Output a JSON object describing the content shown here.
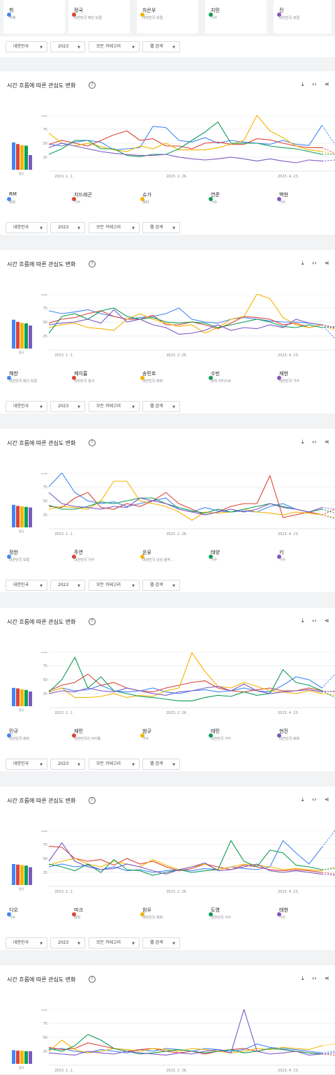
{
  "filters": {
    "region": "대한민국",
    "year": "2023",
    "category": "모든 카테고리",
    "search_type": "웹 검색"
  },
  "section_title": "시간 흐름에 따른 관심도 변화",
  "help_icon": "help-icon",
  "action_icons": [
    "download-icon",
    "embed-code-icon",
    "share-icon"
  ],
  "avg_label": "평균",
  "colors": [
    "#4285f4",
    "#db4437",
    "#f4b400",
    "#0f9d58",
    "#7e57c2"
  ],
  "top_terms": [
    {
      "name": "뷔",
      "category": "주제"
    },
    {
      "name": "정국",
      "category": "대한민국 메인 보컬"
    },
    {
      "name": "차은우",
      "category": "대한민국 보컬"
    },
    {
      "name": "지민",
      "category": "가수"
    },
    {
      "name": "진",
      "category": "대한민국 보컬"
    }
  ],
  "sections": [
    {
      "terms": [
        {
          "name": "RM",
          "category": "래퍼"
        },
        {
          "name": "지드래곤",
          "category": "가수"
        },
        {
          "name": "슈가",
          "category": "래퍼"
        },
        {
          "name": "연준",
          "category": "가수"
        },
        {
          "name": "백현",
          "category": "가수"
        }
      ],
      "chart_data": {
        "type": "line",
        "x_ticks": [
          "2023. 1. 1.",
          "2023. 2. 26.",
          "2023. 4. 23."
        ],
        "y_ticks": [
          25,
          50,
          75,
          100
        ],
        "ylim": [
          0,
          100
        ],
        "averages": [
          52,
          49,
          47,
          46,
          28
        ],
        "series": [
          {
            "values": [
              48,
              45,
              52,
              55,
              52,
              38,
              40,
              42,
              80,
              78,
              55,
              52,
              60,
              50,
              55,
              52,
              50,
              48,
              55,
              48,
              46,
              82,
              48
            ]
          },
          {
            "values": [
              48,
              55,
              50,
              45,
              55,
              65,
              72,
              55,
              58,
              45,
              45,
              40,
              50,
              52,
              48,
              48,
              58,
              56,
              50,
              45,
              42,
              42,
              32
            ]
          },
          {
            "values": [
              68,
              50,
              45,
              50,
              44,
              38,
              35,
              45,
              40,
              50,
              38,
              38,
              38,
              42,
              48,
              55,
              100,
              72,
              60,
              45,
              38,
              35,
              30
            ]
          },
          {
            "values": [
              30,
              40,
              55,
              55,
              40,
              40,
              28,
              26,
              30,
              30,
              40,
              55,
              70,
              88,
              50,
              50,
              50,
              45,
              42,
              40,
              35,
              30,
              30
            ]
          },
          {
            "values": [
              42,
              50,
              45,
              40,
              35,
              32,
              30,
              28,
              28,
              30,
              25,
              22,
              20,
              22,
              25,
              22,
              18,
              22,
              18,
              15,
              20,
              18,
              20
            ]
          }
        ]
      }
    },
    {
      "terms": [
        {
          "name": "해찬",
          "category": "대한민국 메인 보컬"
        },
        {
          "name": "제이홉",
          "category": "대한민국 댄서"
        },
        {
          "name": "송민호",
          "category": "대한민국 래퍼"
        },
        {
          "name": "수빈",
          "category": "뮤직 아티스트"
        },
        {
          "name": "재현",
          "category": "대한민국 가수"
        }
      ],
      "chart_data": {
        "type": "line",
        "x_ticks": [
          "2023. 1. 1.",
          "2023. 2. 26.",
          "2023. 4. 23."
        ],
        "y_ticks": [
          25,
          50,
          75,
          100
        ],
        "ylim": [
          0,
          100
        ],
        "averages": [
          55,
          51,
          49,
          48,
          44
        ],
        "series": [
          {
            "values": [
              70,
              65,
              68,
              72,
              65,
              60,
              55,
              58,
              60,
              65,
              75,
              55,
              50,
              48,
              55,
              58,
              55,
              52,
              50,
              50,
              48,
              45,
              20
            ]
          },
          {
            "values": [
              48,
              55,
              58,
              65,
              70,
              60,
              55,
              55,
              62,
              45,
              45,
              50,
              45,
              38,
              48,
              60,
              58,
              55,
              45,
              48,
              40,
              45,
              38
            ]
          },
          {
            "values": [
              40,
              45,
              48,
              40,
              38,
              35,
              55,
              65,
              55,
              48,
              42,
              45,
              30,
              40,
              55,
              60,
              100,
              92,
              58,
              45,
              40,
              45,
              35
            ]
          },
          {
            "values": [
              30,
              60,
              65,
              55,
              70,
              75,
              60,
              55,
              58,
              50,
              48,
              50,
              48,
              40,
              45,
              50,
              55,
              50,
              42,
              40,
              45,
              40,
              42
            ]
          },
          {
            "values": [
              45,
              48,
              50,
              55,
              48,
              72,
              50,
              55,
              45,
              40,
              28,
              30,
              35,
              45,
              35,
              40,
              38,
              45,
              40,
              55,
              48,
              45,
              40
            ]
          }
        ]
      }
    },
    {
      "terms": [
        {
          "name": "정한",
          "category": "대한민국 보컬"
        },
        {
          "name": "주연",
          "category": "대한민국 가수"
        },
        {
          "name": "온유",
          "category": "대한민국 남성 음악..."
        },
        {
          "name": "태양",
          "category": "가수"
        },
        {
          "name": "키",
          "category": "가수"
        }
      ],
      "chart_data": {
        "type": "line",
        "x_ticks": [
          "2023. 1. 1.",
          "2023. 2. 26.",
          "2023. 4. 23."
        ],
        "y_ticks": [
          25,
          50,
          75,
          100
        ],
        "ylim": [
          0,
          100
        ],
        "averages": [
          43,
          41,
          40,
          39,
          38
        ],
        "series": [
          {
            "values": [
              75,
              100,
              65,
              50,
              45,
              48,
              40,
              45,
              50,
              55,
              35,
              30,
              38,
              32,
              30,
              32,
              30,
              40,
              45,
              35,
              30,
              25,
              18
            ]
          },
          {
            "values": [
              40,
              38,
              55,
              65,
              38,
              35,
              45,
              40,
              50,
              65,
              45,
              35,
              25,
              30,
              40,
              45,
              45,
              95,
              20,
              25,
              30,
              25,
              35
            ]
          },
          {
            "values": [
              35,
              40,
              38,
              35,
              50,
              85,
              85,
              50,
              45,
              40,
              30,
              15,
              30,
              28,
              30,
              35,
              30,
              28,
              25,
              30,
              28,
              25,
              20
            ]
          },
          {
            "values": [
              42,
              35,
              35,
              40,
              48,
              45,
              50,
              55,
              55,
              45,
              38,
              32,
              28,
              35,
              30,
              35,
              40,
              45,
              40,
              35,
              30,
              35,
              28
            ]
          },
          {
            "values": [
              65,
              45,
              40,
              38,
              35,
              40,
              38,
              55,
              50,
              45,
              35,
              30,
              25,
              30,
              35,
              30,
              35,
              45,
              38,
              35,
              30,
              38,
              35
            ]
          }
        ]
      }
    },
    {
      "terms": [
        {
          "name": "민규",
          "category": "대한민국 래퍼"
        },
        {
          "name": "재민",
          "category": "대한민국의 아이돌"
        },
        {
          "name": "범규",
          "category": "가수"
        },
        {
          "name": "태민",
          "category": "대한민국 가수"
        },
        {
          "name": "현진",
          "category": "대한민국 래퍼"
        }
      ],
      "chart_data": {
        "type": "line",
        "x_ticks": [
          "2023. 1. 1.",
          "2023. 2. 26.",
          "2023. 4. 23."
        ],
        "y_ticks": [
          25,
          50,
          75,
          100
        ],
        "ylim": [
          0,
          100
        ],
        "averages": [
          35,
          34,
          32,
          31,
          28
        ],
        "series": [
          {
            "values": [
              28,
              35,
              30,
              32,
              40,
              30,
              28,
              30,
              35,
              28,
              25,
              30,
              32,
              28,
              30,
              35,
              30,
              28,
              40,
              55,
              50,
              35,
              60
            ]
          },
          {
            "values": [
              30,
              40,
              45,
              60,
              40,
              45,
              35,
              30,
              28,
              35,
              40,
              45,
              48,
              35,
              30,
              28,
              32,
              35,
              30,
              30,
              35,
              30,
              28
            ]
          },
          {
            "values": [
              28,
              35,
              18,
              18,
              20,
              25,
              18,
              22,
              20,
              30,
              35,
              98,
              65,
              38,
              35,
              45,
              38,
              30,
              28,
              25,
              30,
              25,
              22
            ]
          },
          {
            "values": [
              28,
              50,
              90,
              35,
              55,
              30,
              25,
              20,
              18,
              15,
              12,
              12,
              18,
              22,
              20,
              28,
              22,
              25,
              68,
              45,
              40,
              30,
              18
            ]
          },
          {
            "values": [
              25,
              30,
              28,
              35,
              30,
              28,
              35,
              30,
              25,
              22,
              28,
              30,
              35,
              38,
              30,
              42,
              30,
              25,
              28,
              30,
              32,
              28,
              30
            ]
          }
        ]
      }
    },
    {
      "terms": [
        {
          "name": "디오",
          "category": "가수"
        },
        {
          "name": "마크",
          "category": "래퍼"
        },
        {
          "name": "원우",
          "category": "대한민국 래퍼"
        },
        {
          "name": "도영",
          "category": "대한민국 가수"
        },
        {
          "name": "태현",
          "category": "가수"
        }
      ],
      "chart_data": {
        "type": "line",
        "x_ticks": [
          "2023. 1. 1.",
          "2023. 2. 26.",
          "2023. 4. 23."
        ],
        "y_ticks": [
          25,
          50,
          75,
          100
        ],
        "ylim": [
          0,
          100
        ],
        "averages": [
          40,
          39,
          38,
          37,
          34
        ],
        "series": [
          {
            "values": [
              35,
              40,
              35,
              38,
              30,
              35,
              28,
              30,
              25,
              28,
              30,
              28,
              32,
              30,
              35,
              32,
              30,
              35,
              82,
              60,
              40,
              70,
              100
            ]
          },
          {
            "values": [
              72,
              70,
              50,
              45,
              48,
              38,
              50,
              40,
              45,
              35,
              28,
              32,
              40,
              35,
              30,
              38,
              35,
              30,
              28,
              30,
              28,
              25,
              22
            ]
          },
          {
            "values": [
              38,
              45,
              50,
              40,
              35,
              45,
              40,
              35,
              48,
              38,
              30,
              35,
              40,
              30,
              35,
              40,
              38,
              35,
              30,
              32,
              30,
              28,
              35
            ]
          },
          {
            "values": [
              40,
              35,
              28,
              40,
              25,
              48,
              30,
              28,
              20,
              25,
              30,
              25,
              28,
              30,
              82,
              45,
              35,
              65,
              60,
              38,
              35,
              30,
              32
            ]
          },
          {
            "values": [
              45,
              78,
              45,
              35,
              30,
              32,
              40,
              35,
              28,
              22,
              30,
              35,
              42,
              28,
              30,
              35,
              40,
              28,
              25,
              28,
              25,
              22,
              20
            ]
          }
        ]
      }
    },
    {
      "terms": [],
      "chart_data": {
        "type": "line",
        "x_ticks": [
          "2023. 1. 1.",
          "2023. 2. 26.",
          "2023. 4. 23."
        ],
        "y_ticks": [
          25,
          50,
          75,
          100
        ],
        "ylim": [
          0,
          100
        ],
        "averages": [
          26,
          25,
          25,
          24,
          24
        ],
        "series": [
          {
            "values": [
              28,
              30,
              25,
              22,
              28,
              25,
              22,
              28,
              25,
              30,
              28,
              25,
              30,
              28,
              25,
              28,
              38,
              32,
              30,
              28,
              25,
              22,
              25
            ]
          },
          {
            "values": [
              32,
              28,
              30,
              40,
              35,
              30,
              25,
              28,
              30,
              25,
              22,
              25,
              20,
              25,
              28,
              30,
              25,
              30,
              28,
              25,
              22,
              20,
              18
            ]
          },
          {
            "values": [
              25,
              45,
              28,
              22,
              25,
              30,
              28,
              25,
              30,
              28,
              25,
              30,
              28,
              25,
              22,
              25,
              30,
              28,
              32,
              30,
              28,
              35,
              38
            ]
          },
          {
            "values": [
              30,
              25,
              35,
              55,
              45,
              30,
              25,
              20,
              22,
              25,
              28,
              25,
              22,
              25,
              28,
              22,
              25,
              30,
              28,
              25,
              22,
              20,
              22
            ]
          },
          {
            "values": [
              22,
              20,
              18,
              25,
              22,
              20,
              25,
              22,
              20,
              18,
              22,
              20,
              25,
              28,
              22,
              100,
              25,
              20,
              22,
              25,
              18,
              20,
              22
            ]
          }
        ]
      }
    }
  ]
}
